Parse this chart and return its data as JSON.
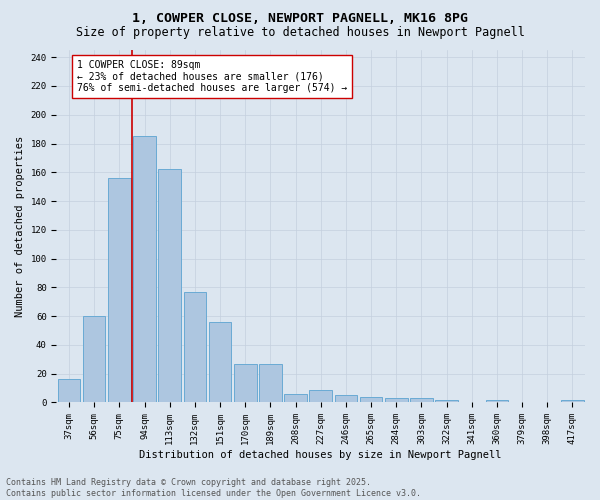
{
  "title_line1": "1, COWPER CLOSE, NEWPORT PAGNELL, MK16 8PG",
  "title_line2": "Size of property relative to detached houses in Newport Pagnell",
  "xlabel": "Distribution of detached houses by size in Newport Pagnell",
  "ylabel": "Number of detached properties",
  "categories": [
    "37sqm",
    "56sqm",
    "75sqm",
    "94sqm",
    "113sqm",
    "132sqm",
    "151sqm",
    "170sqm",
    "189sqm",
    "208sqm",
    "227sqm",
    "246sqm",
    "265sqm",
    "284sqm",
    "303sqm",
    "322sqm",
    "341sqm",
    "360sqm",
    "379sqm",
    "398sqm",
    "417sqm"
  ],
  "values": [
    16,
    60,
    156,
    185,
    162,
    77,
    56,
    27,
    27,
    6,
    9,
    5,
    4,
    3,
    3,
    2,
    0,
    2,
    0,
    0,
    2
  ],
  "bar_color": "#adc6e0",
  "bar_edge_color": "#6aaad4",
  "background_color": "#dce6f0",
  "vline_color": "#cc0000",
  "annotation_text": "1 COWPER CLOSE: 89sqm\n← 23% of detached houses are smaller (176)\n76% of semi-detached houses are larger (574) →",
  "annotation_box_color": "#ffffff",
  "annotation_box_edge_color": "#cc0000",
  "ylim": [
    0,
    245
  ],
  "yticks": [
    0,
    20,
    40,
    60,
    80,
    100,
    120,
    140,
    160,
    180,
    200,
    220,
    240
  ],
  "footer_line1": "Contains HM Land Registry data © Crown copyright and database right 2025.",
  "footer_line2": "Contains public sector information licensed under the Open Government Licence v3.0.",
  "title_fontsize": 9.5,
  "subtitle_fontsize": 8.5,
  "axis_label_fontsize": 7.5,
  "tick_fontsize": 6.5,
  "annotation_fontsize": 7,
  "footer_fontsize": 6
}
